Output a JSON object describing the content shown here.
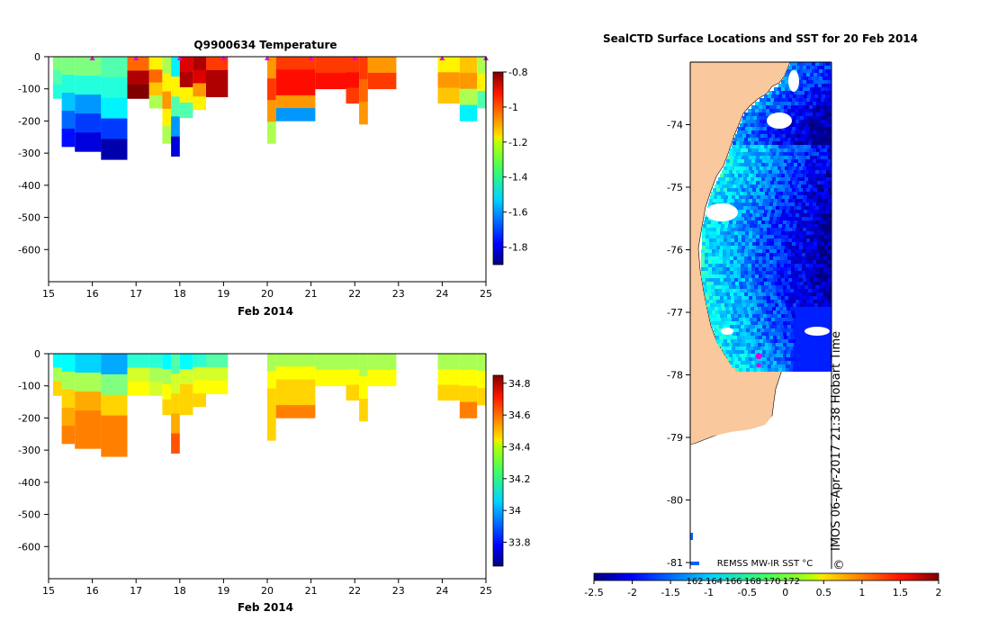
{
  "chart_data": [
    {
      "type": "heatmap",
      "title": "Q9900634  Temperature",
      "xlabel": "Feb 2014",
      "ylabel": "",
      "xlim": [
        15,
        25
      ],
      "ylim": [
        -700,
        0
      ],
      "x_ticks": [
        "15",
        "16",
        "17",
        "18",
        "19",
        "20",
        "21",
        "22",
        "23",
        "24",
        "25"
      ],
      "y_ticks": [
        "0",
        "-100",
        "-200",
        "-300",
        "-400",
        "-500",
        "-600"
      ],
      "colorbar": {
        "min": -1.9,
        "max": -0.8,
        "ticks": [
          "-0.8",
          "-1",
          "-1.2",
          "-1.4",
          "-1.6",
          "-1.8"
        ]
      },
      "profile_marks": [
        16.0,
        17.0,
        18.0,
        19.0,
        20.0,
        21.0,
        22.0,
        24.0,
        25.0
      ],
      "profiles": [
        {
          "x0": 15.1,
          "x1": 15.3,
          "depth": 130,
          "values": [
            -1.35,
            -1.4,
            -1.45
          ]
        },
        {
          "x0": 15.3,
          "x1": 15.6,
          "depth": 280,
          "values": [
            -1.35,
            -1.45,
            -1.55,
            -1.65,
            -1.75
          ]
        },
        {
          "x0": 15.6,
          "x1": 16.2,
          "depth": 295,
          "values": [
            -1.35,
            -1.45,
            -1.6,
            -1.7,
            -1.8
          ]
        },
        {
          "x0": 16.2,
          "x1": 16.8,
          "depth": 320,
          "values": [
            -1.4,
            -1.45,
            -1.5,
            -1.7,
            -1.85
          ]
        },
        {
          "x0": 16.8,
          "x1": 17.3,
          "depth": 130,
          "values": [
            -1.05,
            -0.85,
            -0.8
          ]
        },
        {
          "x0": 17.3,
          "x1": 17.6,
          "depth": 160,
          "values": [
            -1.2,
            -1.05,
            -1.15,
            -1.3
          ]
        },
        {
          "x0": 17.6,
          "x1": 17.8,
          "depth": 270,
          "values": [
            -1.3,
            -1.2,
            -1.1,
            -1.2,
            -1.3
          ]
        },
        {
          "x0": 17.8,
          "x1": 18.0,
          "depth": 310,
          "values": [
            -1.5,
            -1.2,
            -1.4,
            -1.6,
            -1.8
          ]
        },
        {
          "x0": 18.0,
          "x1": 18.3,
          "depth": 190,
          "values": [
            -0.9,
            -0.85,
            -1.2,
            -1.4
          ]
        },
        {
          "x0": 18.3,
          "x1": 18.6,
          "depth": 165,
          "values": [
            -0.85,
            -0.9,
            -1.1,
            -1.2
          ]
        },
        {
          "x0": 18.6,
          "x1": 19.1,
          "depth": 125,
          "values": [
            -1.0,
            -0.85,
            -0.85
          ]
        },
        {
          "x0": 20.0,
          "x1": 20.2,
          "depth": 270,
          "values": [
            -1.1,
            -1.0,
            -1.1,
            -1.3
          ]
        },
        {
          "x0": 20.2,
          "x1": 21.1,
          "depth": 200,
          "values": [
            -1.0,
            -0.95,
            -0.95,
            -1.1,
            -1.6
          ]
        },
        {
          "x0": 21.1,
          "x1": 21.8,
          "depth": 100,
          "values": [
            -1.0,
            -0.95
          ]
        },
        {
          "x0": 21.8,
          "x1": 22.1,
          "depth": 145,
          "values": [
            -1.0,
            -0.95,
            -1.0
          ]
        },
        {
          "x0": 22.1,
          "x1": 22.3,
          "depth": 210,
          "values": [
            -1.0,
            -1.05,
            -1.1
          ]
        },
        {
          "x0": 22.3,
          "x1": 22.95,
          "depth": 100,
          "values": [
            -1.1,
            -1.0
          ]
        },
        {
          "x0": 23.9,
          "x1": 24.4,
          "depth": 145,
          "values": [
            -1.2,
            -1.1,
            -1.15
          ]
        },
        {
          "x0": 24.4,
          "x1": 24.8,
          "depth": 200,
          "values": [
            -1.15,
            -1.1,
            -1.3,
            -1.5
          ]
        },
        {
          "x0": 24.8,
          "x1": 25.0,
          "depth": 160,
          "values": [
            -1.3,
            -1.2,
            -1.4
          ]
        }
      ]
    },
    {
      "type": "heatmap",
      "title": "",
      "xlabel": "Feb 2014",
      "ylabel": "",
      "xlim": [
        15,
        25
      ],
      "ylim": [
        -700,
        0
      ],
      "x_ticks": [
        "15",
        "16",
        "17",
        "18",
        "19",
        "20",
        "21",
        "22",
        "23",
        "24",
        "25"
      ],
      "y_ticks": [
        "0",
        "-100",
        "-200",
        "-300",
        "-400",
        "-500",
        "-600"
      ],
      "colorbar": {
        "min": 33.65,
        "max": 34.85,
        "ticks": [
          "34.8",
          "34.6",
          "34.4",
          "34.2",
          "34",
          "33.8"
        ]
      },
      "profiles": [
        {
          "x0": 15.1,
          "x1": 15.3,
          "depth": 130,
          "values": [
            34.1,
            34.3,
            34.45
          ]
        },
        {
          "x0": 15.3,
          "x1": 15.6,
          "depth": 280,
          "values": [
            34.1,
            34.3,
            34.45,
            34.5,
            34.55
          ]
        },
        {
          "x0": 15.6,
          "x1": 16.2,
          "depth": 295,
          "values": [
            34.05,
            34.3,
            34.5,
            34.55,
            34.55
          ]
        },
        {
          "x0": 16.2,
          "x1": 16.8,
          "depth": 320,
          "values": [
            34.0,
            34.25,
            34.45,
            34.55,
            34.55
          ]
        },
        {
          "x0": 16.8,
          "x1": 17.3,
          "depth": 130,
          "values": [
            34.15,
            34.35,
            34.4
          ]
        },
        {
          "x0": 17.3,
          "x1": 17.6,
          "depth": 130,
          "values": [
            34.15,
            34.3,
            34.35
          ]
        },
        {
          "x0": 17.6,
          "x1": 17.8,
          "depth": 190,
          "values": [
            34.1,
            34.3,
            34.4,
            34.45
          ]
        },
        {
          "x0": 17.8,
          "x1": 18.0,
          "depth": 310,
          "values": [
            34.2,
            34.35,
            34.45,
            34.5,
            34.6
          ]
        },
        {
          "x0": 18.0,
          "x1": 18.3,
          "depth": 190,
          "values": [
            34.1,
            34.35,
            34.45,
            34.45
          ]
        },
        {
          "x0": 18.3,
          "x1": 18.6,
          "depth": 165,
          "values": [
            34.15,
            34.35,
            34.4,
            34.45
          ]
        },
        {
          "x0": 18.6,
          "x1": 19.1,
          "depth": 125,
          "values": [
            34.2,
            34.35,
            34.4
          ]
        },
        {
          "x0": 20.0,
          "x1": 20.2,
          "depth": 270,
          "values": [
            34.3,
            34.4,
            34.45,
            34.45,
            34.45
          ]
        },
        {
          "x0": 20.2,
          "x1": 21.1,
          "depth": 200,
          "values": [
            34.3,
            34.4,
            34.45,
            34.45,
            34.55
          ]
        },
        {
          "x0": 21.1,
          "x1": 21.8,
          "depth": 100,
          "values": [
            34.3,
            34.4
          ]
        },
        {
          "x0": 21.8,
          "x1": 22.1,
          "depth": 145,
          "values": [
            34.3,
            34.4,
            34.45
          ]
        },
        {
          "x0": 22.1,
          "x1": 22.3,
          "depth": 210,
          "values": [
            34.3,
            34.4,
            34.45
          ]
        },
        {
          "x0": 22.3,
          "x1": 22.95,
          "depth": 100,
          "values": [
            34.3,
            34.4
          ]
        },
        {
          "x0": 23.9,
          "x1": 24.4,
          "depth": 145,
          "values": [
            34.3,
            34.4,
            34.45
          ]
        },
        {
          "x0": 24.4,
          "x1": 24.8,
          "depth": 200,
          "values": [
            34.3,
            34.4,
            34.45,
            34.55
          ]
        },
        {
          "x0": 24.8,
          "x1": 25.0,
          "depth": 160,
          "values": [
            34.3,
            34.4,
            34.45
          ]
        }
      ]
    },
    {
      "type": "map",
      "title": "SealCTD Surface Locations and SST for 20 Feb 2014",
      "y_ticks": [
        "-74",
        "-75",
        "-76",
        "-77",
        "-78",
        "-79",
        "-80",
        "-81"
      ],
      "ylim": [
        -81.1,
        -73.0
      ],
      "x_hidden_ticks": [
        "162",
        "164",
        "166",
        "168",
        "170",
        "172"
      ],
      "sst_source": "REMSS MW-IR SST °C",
      "colorbar": {
        "min": -2.5,
        "max": 2.0,
        "ticks": [
          "-2.5",
          "-2",
          "-1.5",
          "-1",
          "-0.5",
          "0",
          "0.5",
          "1",
          "1.5",
          "2"
        ]
      },
      "land_color": "#f9c89c",
      "surface_location_color": "#e000e0",
      "surface_locations_lat": [
        -77.7,
        -77.85
      ],
      "watermark": "IMOS 06-Apr-2017 21:38 Hobart Time",
      "copyright_symbol": "©"
    }
  ]
}
